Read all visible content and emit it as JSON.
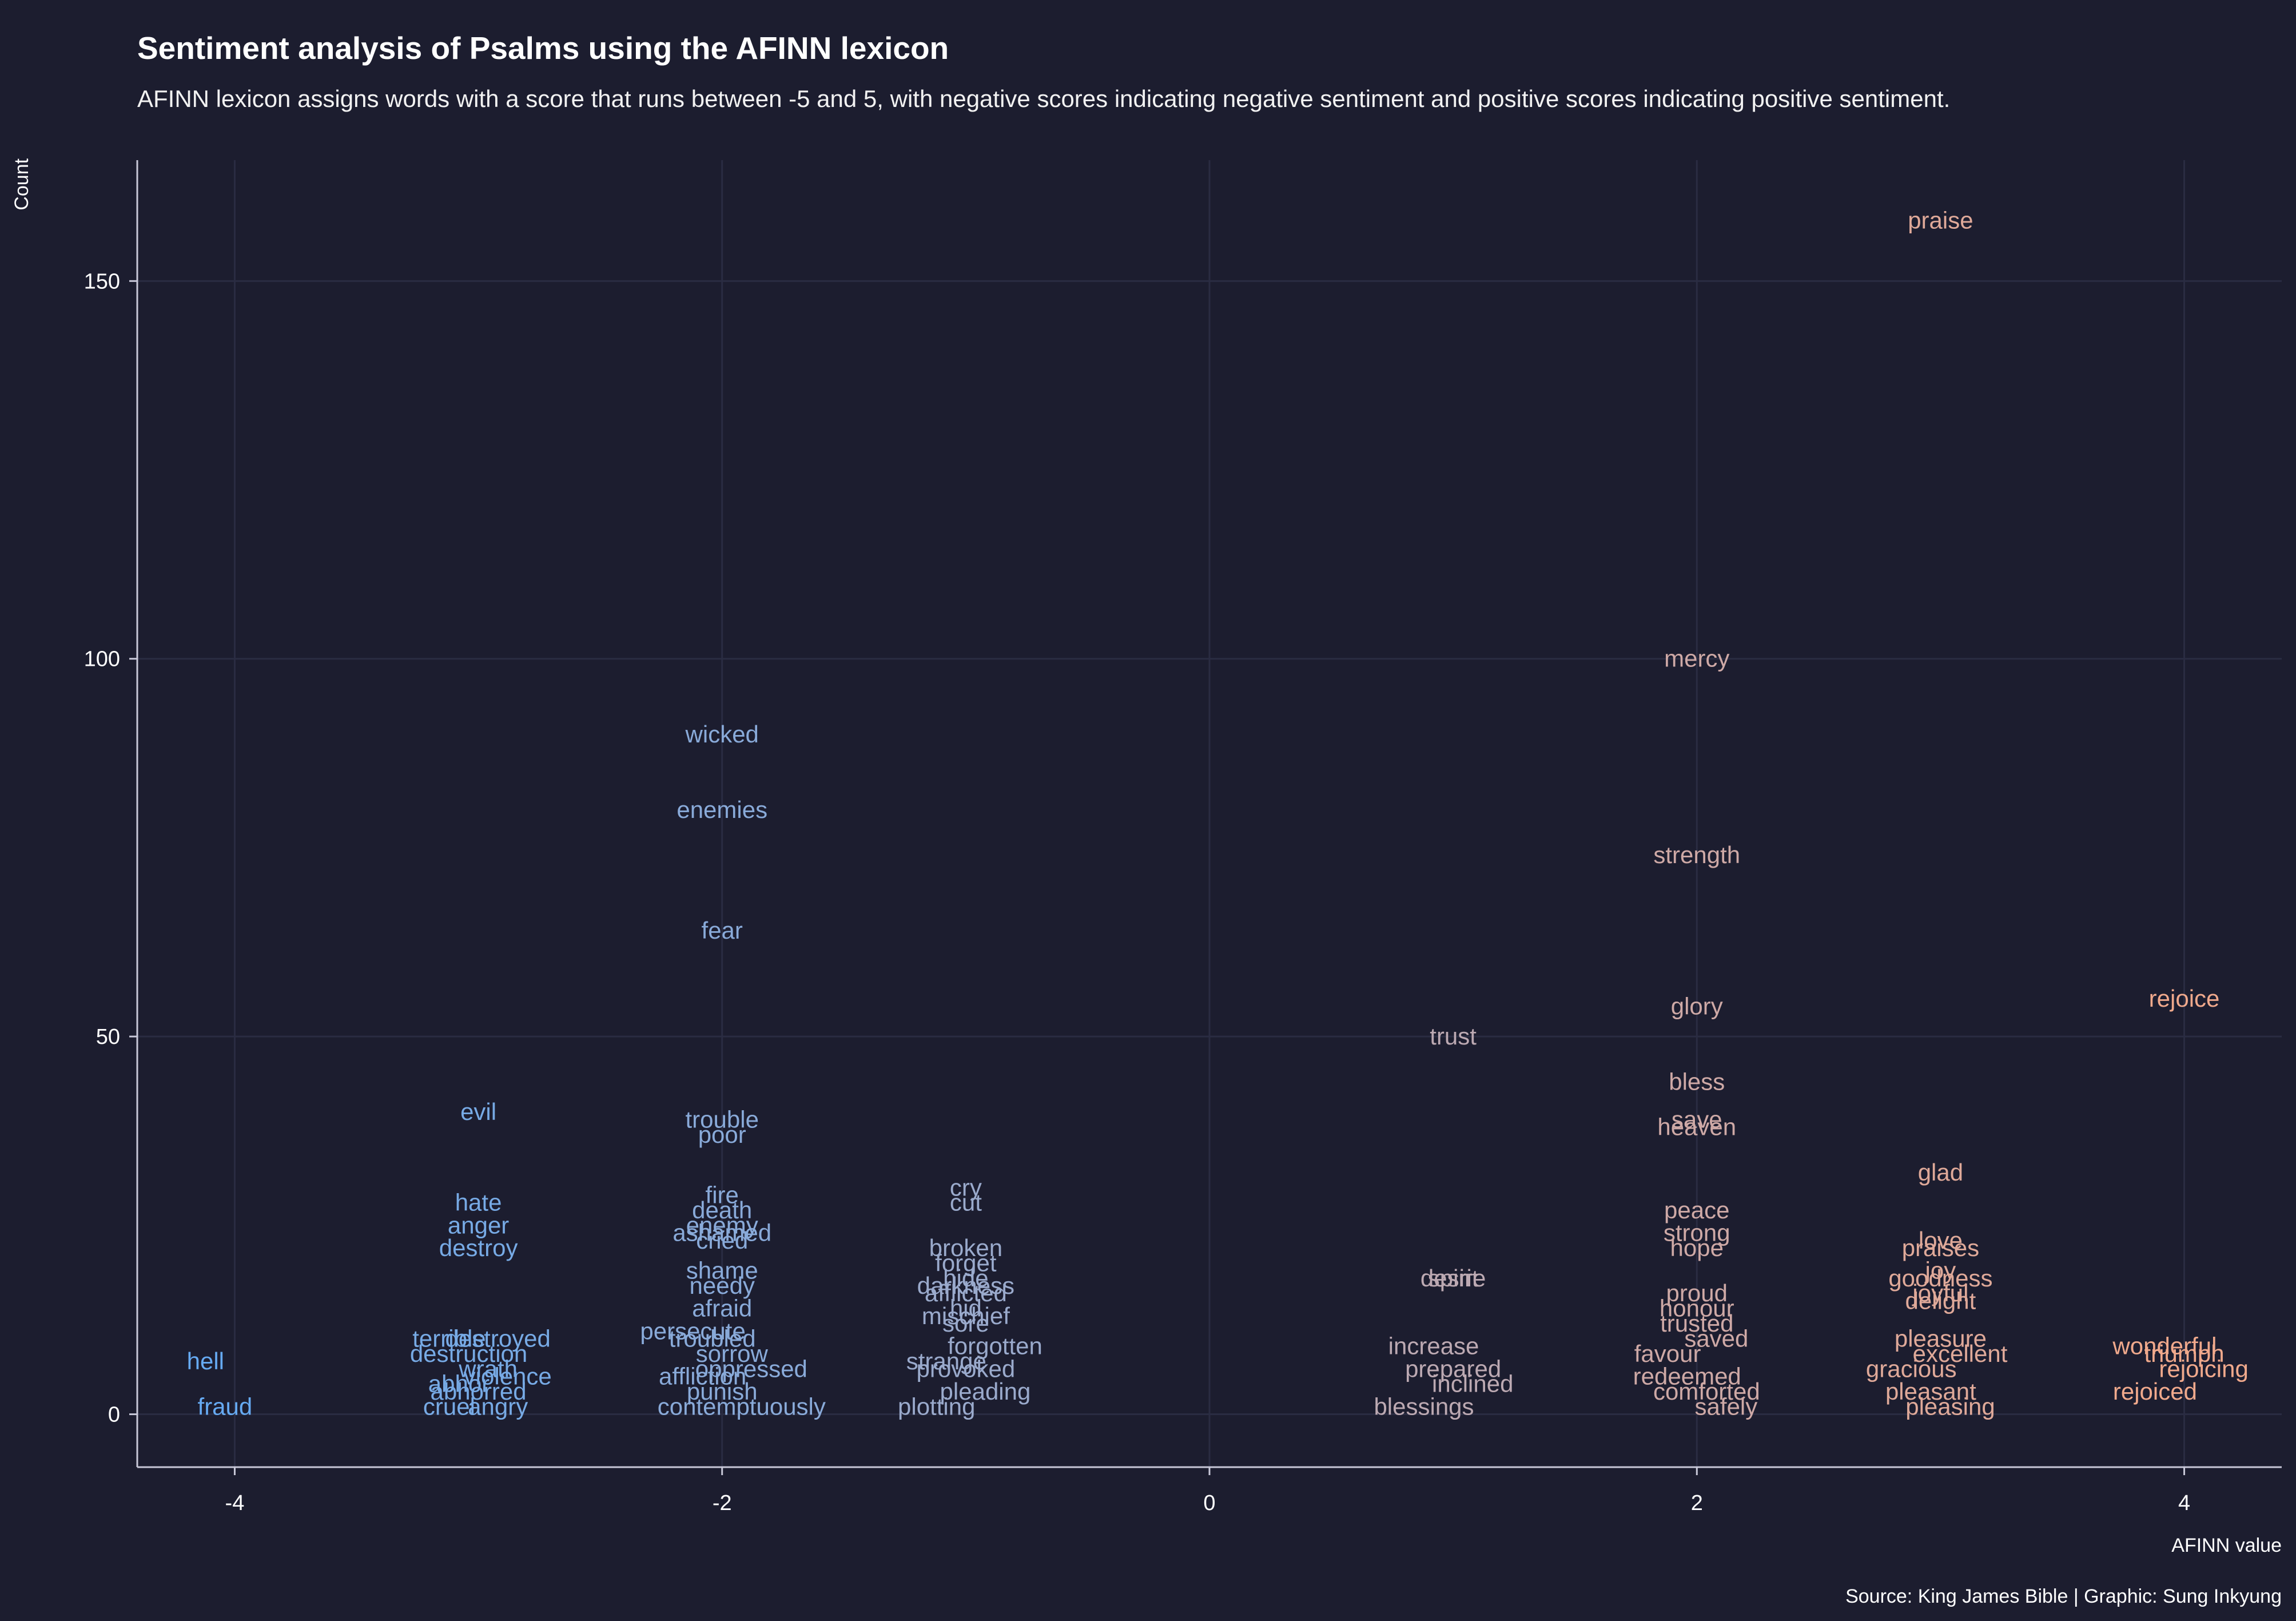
{
  "chart_data": {
    "type": "scatter",
    "title": "Sentiment analysis of Psalms using the AFINN lexicon",
    "subtitle": "AFINN lexicon assigns words with a score that runs between -5 and 5, with negative scores indicating negative sentiment and positive scores indicating positive sentiment.",
    "xlabel": "AFINN value",
    "ylabel": "Count",
    "caption": "Source: King James Bible | Graphic: Sung Inkyung",
    "xlim": [
      -4.4,
      4.4
    ],
    "ylim": [
      -7,
      166
    ],
    "x_ticks": [
      -4,
      -2,
      0,
      2,
      4
    ],
    "y_ticks": [
      0,
      50,
      100,
      150
    ],
    "grid": true,
    "colors": {
      "background": "#1c1d2f",
      "grid": "#2a2c42",
      "axis": "#c8c8d8",
      "low": "#66aaf2",
      "high": "#f0a98c"
    },
    "points": [
      {
        "word": "hell",
        "x": -4,
        "count": 7
      },
      {
        "word": "fraud",
        "x": -4,
        "count": 1
      },
      {
        "word": "evil",
        "x": -3,
        "count": 40
      },
      {
        "word": "hate",
        "x": -3,
        "count": 28
      },
      {
        "word": "anger",
        "x": -3,
        "count": 25
      },
      {
        "word": "destroy",
        "x": -3,
        "count": 22
      },
      {
        "word": "destroyed",
        "x": -3,
        "count": 10
      },
      {
        "word": "terrible",
        "x": -3,
        "count": 10
      },
      {
        "word": "destruction",
        "x": -3,
        "count": 8
      },
      {
        "word": "wrath",
        "x": -3,
        "count": 6
      },
      {
        "word": "violence",
        "x": -3,
        "count": 5
      },
      {
        "word": "abhor",
        "x": -3,
        "count": 4
      },
      {
        "word": "abhorred",
        "x": -3,
        "count": 3
      },
      {
        "word": "angry",
        "x": -3,
        "count": 1
      },
      {
        "word": "cruel",
        "x": -3,
        "count": 1
      },
      {
        "word": "wicked",
        "x": -2,
        "count": 90
      },
      {
        "word": "enemies",
        "x": -2,
        "count": 80
      },
      {
        "word": "fear",
        "x": -2,
        "count": 64
      },
      {
        "word": "trouble",
        "x": -2,
        "count": 39
      },
      {
        "word": "poor",
        "x": -2,
        "count": 37
      },
      {
        "word": "fire",
        "x": -2,
        "count": 29
      },
      {
        "word": "death",
        "x": -2,
        "count": 27
      },
      {
        "word": "enemy",
        "x": -2,
        "count": 25
      },
      {
        "word": "ashamed",
        "x": -2,
        "count": 24
      },
      {
        "word": "cried",
        "x": -2,
        "count": 23
      },
      {
        "word": "shame",
        "x": -2,
        "count": 19
      },
      {
        "word": "needy",
        "x": -2,
        "count": 17
      },
      {
        "word": "afraid",
        "x": -2,
        "count": 14
      },
      {
        "word": "persecute",
        "x": -2,
        "count": 11
      },
      {
        "word": "troubled",
        "x": -2,
        "count": 10
      },
      {
        "word": "sorrow",
        "x": -2,
        "count": 8
      },
      {
        "word": "oppressed",
        "x": -2,
        "count": 6
      },
      {
        "word": "affliction",
        "x": -2,
        "count": 5
      },
      {
        "word": "punish",
        "x": -2,
        "count": 3
      },
      {
        "word": "contemptuously",
        "x": -2,
        "count": 1
      },
      {
        "word": "cry",
        "x": -1,
        "count": 30
      },
      {
        "word": "cut",
        "x": -1,
        "count": 28
      },
      {
        "word": "broken",
        "x": -1,
        "count": 22
      },
      {
        "word": "forget",
        "x": -1,
        "count": 20
      },
      {
        "word": "hide",
        "x": -1,
        "count": 18
      },
      {
        "word": "darkness",
        "x": -1,
        "count": 17
      },
      {
        "word": "afflicted",
        "x": -1,
        "count": 16
      },
      {
        "word": "hid",
        "x": -1,
        "count": 14
      },
      {
        "word": "mischief",
        "x": -1,
        "count": 13
      },
      {
        "word": "sore",
        "x": -1,
        "count": 12
      },
      {
        "word": "forgotten",
        "x": -1,
        "count": 9
      },
      {
        "word": "strange",
        "x": -1,
        "count": 7
      },
      {
        "word": "provoked",
        "x": -1,
        "count": 6
      },
      {
        "word": "pleading",
        "x": -1,
        "count": 3
      },
      {
        "word": "plotting",
        "x": -1,
        "count": 1
      },
      {
        "word": "trust",
        "x": 1,
        "count": 50
      },
      {
        "word": "desire",
        "x": 1,
        "count": 18
      },
      {
        "word": "spirit",
        "x": 1,
        "count": 18
      },
      {
        "word": "increase",
        "x": 1,
        "count": 9
      },
      {
        "word": "prepared",
        "x": 1,
        "count": 6
      },
      {
        "word": "inclined",
        "x": 1,
        "count": 4
      },
      {
        "word": "blessings",
        "x": 1,
        "count": 1
      },
      {
        "word": "mercy",
        "x": 2,
        "count": 100
      },
      {
        "word": "strength",
        "x": 2,
        "count": 74
      },
      {
        "word": "glory",
        "x": 2,
        "count": 54
      },
      {
        "word": "bless",
        "x": 2,
        "count": 44
      },
      {
        "word": "save",
        "x": 2,
        "count": 39
      },
      {
        "word": "heaven",
        "x": 2,
        "count": 38
      },
      {
        "word": "peace",
        "x": 2,
        "count": 27
      },
      {
        "word": "strong",
        "x": 2,
        "count": 24
      },
      {
        "word": "hope",
        "x": 2,
        "count": 22
      },
      {
        "word": "proud",
        "x": 2,
        "count": 16
      },
      {
        "word": "honour",
        "x": 2,
        "count": 14
      },
      {
        "word": "trusted",
        "x": 2,
        "count": 12
      },
      {
        "word": "saved",
        "x": 2,
        "count": 10
      },
      {
        "word": "favour",
        "x": 2,
        "count": 8
      },
      {
        "word": "redeemed",
        "x": 2,
        "count": 5
      },
      {
        "word": "comforted",
        "x": 2,
        "count": 3
      },
      {
        "word": "safely",
        "x": 2,
        "count": 1
      },
      {
        "word": "praise",
        "x": 3,
        "count": 158
      },
      {
        "word": "glad",
        "x": 3,
        "count": 32
      },
      {
        "word": "love",
        "x": 3,
        "count": 23
      },
      {
        "word": "praises",
        "x": 3,
        "count": 22
      },
      {
        "word": "joy",
        "x": 3,
        "count": 19
      },
      {
        "word": "goodness",
        "x": 3,
        "count": 18
      },
      {
        "word": "joyful",
        "x": 3,
        "count": 16
      },
      {
        "word": "delight",
        "x": 3,
        "count": 15
      },
      {
        "word": "pleasure",
        "x": 3,
        "count": 10
      },
      {
        "word": "excellent",
        "x": 3,
        "count": 8
      },
      {
        "word": "gracious",
        "x": 3,
        "count": 6
      },
      {
        "word": "pleasant",
        "x": 3,
        "count": 3
      },
      {
        "word": "pleasing",
        "x": 3,
        "count": 1
      },
      {
        "word": "rejoice",
        "x": 4,
        "count": 55
      },
      {
        "word": "wonderful",
        "x": 4,
        "count": 9
      },
      {
        "word": "triumph",
        "x": 4,
        "count": 8
      },
      {
        "word": "rejoicing",
        "x": 4,
        "count": 6
      },
      {
        "word": "rejoiced",
        "x": 4,
        "count": 3
      }
    ]
  }
}
